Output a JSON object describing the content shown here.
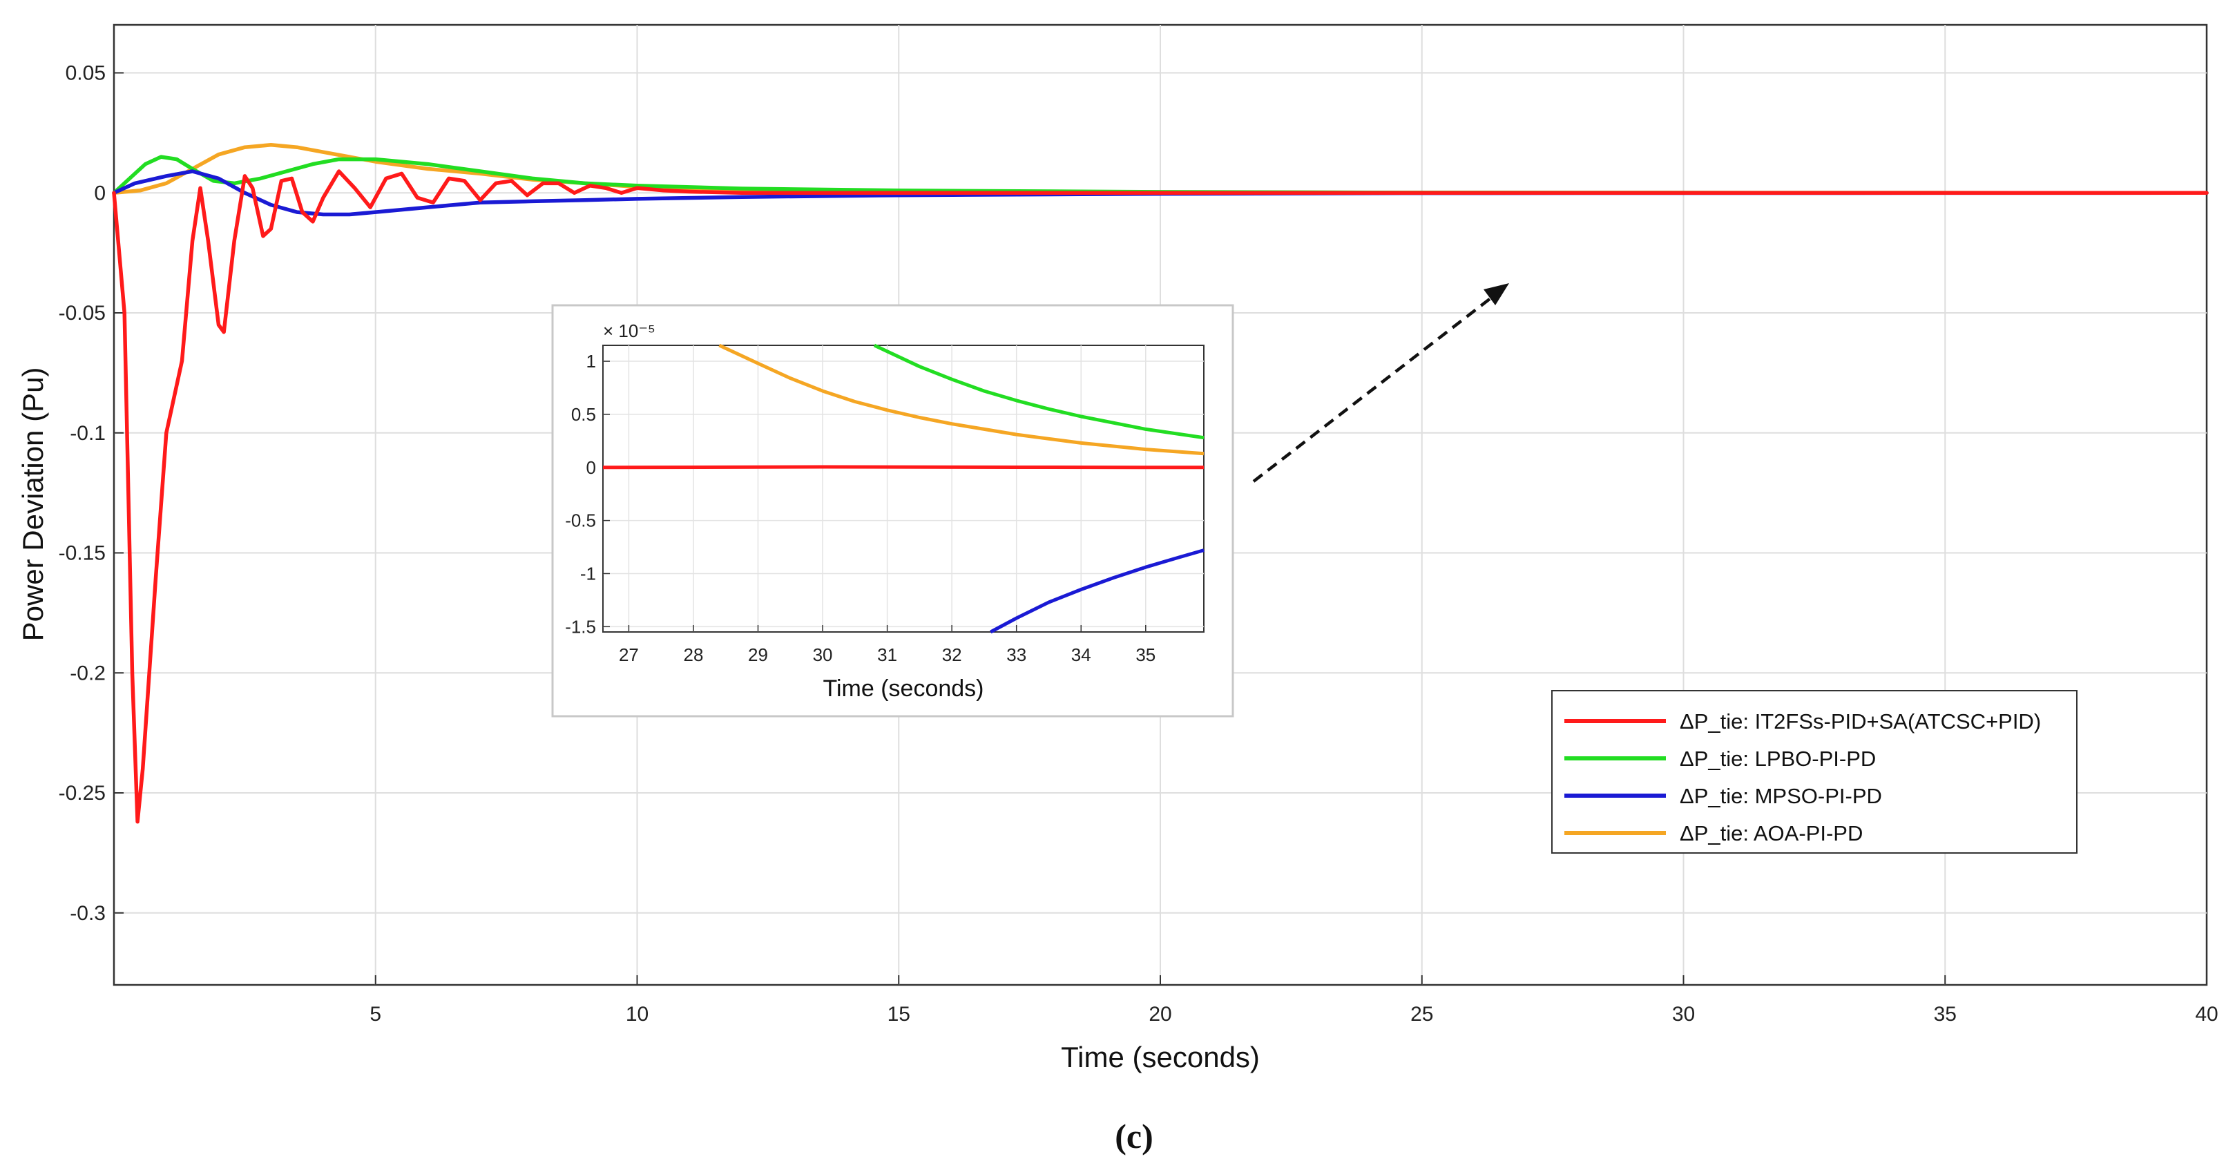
{
  "chart_data": {
    "type": "line",
    "title": "",
    "xlabel": "Time (seconds)",
    "ylabel": "Power Deviation (Pu)",
    "xlim": [
      0,
      40
    ],
    "ylim": [
      -0.33,
      0.07
    ],
    "xticks": [
      5,
      10,
      15,
      20,
      25,
      30,
      35,
      40
    ],
    "xtick_labels": [
      "5",
      "10",
      "15",
      "20",
      "25",
      "30",
      "35",
      "40"
    ],
    "yticks": [
      0.05,
      0,
      -0.05,
      -0.1,
      -0.15,
      -0.2,
      -0.25,
      -0.3
    ],
    "ytick_labels": [
      "0.05",
      "0",
      "-0.05",
      "-0.1",
      "-0.15",
      "-0.2",
      "-0.25",
      "-0.3"
    ],
    "grid": true,
    "legend_position": "lower-right",
    "series": [
      {
        "name": "ΔP_tie: IT2FSs-PID+SA(ATCSC+PID)",
        "color": "#ff1a1a",
        "points": [
          [
            0,
            0
          ],
          [
            0.2,
            -0.05
          ],
          [
            0.35,
            -0.2
          ],
          [
            0.45,
            -0.262
          ],
          [
            0.55,
            -0.24
          ],
          [
            0.8,
            -0.16
          ],
          [
            1.0,
            -0.1
          ],
          [
            1.3,
            -0.07
          ],
          [
            1.5,
            -0.02
          ],
          [
            1.65,
            0.002
          ],
          [
            1.8,
            -0.02
          ],
          [
            2.0,
            -0.055
          ],
          [
            2.1,
            -0.058
          ],
          [
            2.3,
            -0.02
          ],
          [
            2.5,
            0.007
          ],
          [
            2.65,
            0.002
          ],
          [
            2.85,
            -0.018
          ],
          [
            3.0,
            -0.015
          ],
          [
            3.2,
            0.005
          ],
          [
            3.4,
            0.006
          ],
          [
            3.6,
            -0.008
          ],
          [
            3.8,
            -0.012
          ],
          [
            4.0,
            -0.002
          ],
          [
            4.3,
            0.009
          ],
          [
            4.6,
            0.002
          ],
          [
            4.9,
            -0.006
          ],
          [
            5.2,
            0.006
          ],
          [
            5.5,
            0.008
          ],
          [
            5.8,
            -0.002
          ],
          [
            6.1,
            -0.004
          ],
          [
            6.4,
            0.006
          ],
          [
            6.7,
            0.005
          ],
          [
            7.0,
            -0.003
          ],
          [
            7.3,
            0.004
          ],
          [
            7.6,
            0.005
          ],
          [
            7.9,
            -0.001
          ],
          [
            8.2,
            0.004
          ],
          [
            8.5,
            0.004
          ],
          [
            8.8,
            0.0
          ],
          [
            9.1,
            0.003
          ],
          [
            9.4,
            0.002
          ],
          [
            9.7,
            0.0
          ],
          [
            10.0,
            0.002
          ],
          [
            10.5,
            0.001
          ],
          [
            11,
            0.0005
          ],
          [
            12,
            0.0
          ],
          [
            40,
            0.0
          ]
        ]
      },
      {
        "name": "ΔP_tie: LPBO-PI-PD",
        "color": "#22dd22",
        "points": [
          [
            0,
            0
          ],
          [
            0.3,
            0.006
          ],
          [
            0.6,
            0.012
          ],
          [
            0.9,
            0.015
          ],
          [
            1.2,
            0.014
          ],
          [
            1.5,
            0.01
          ],
          [
            1.9,
            0.005
          ],
          [
            2.3,
            0.004
          ],
          [
            2.8,
            0.006
          ],
          [
            3.3,
            0.009
          ],
          [
            3.8,
            0.012
          ],
          [
            4.3,
            0.014
          ],
          [
            5,
            0.014
          ],
          [
            6,
            0.012
          ],
          [
            7,
            0.009
          ],
          [
            8,
            0.006
          ],
          [
            9,
            0.004
          ],
          [
            10,
            0.003
          ],
          [
            12,
            0.0018
          ],
          [
            15,
            0.001
          ],
          [
            20,
            0.0004
          ],
          [
            25,
            0.0001
          ],
          [
            40,
            0.0
          ]
        ]
      },
      {
        "name": "ΔP_tie: MPSO-PI-PD",
        "color": "#1a1ad4",
        "points": [
          [
            0,
            0
          ],
          [
            0.4,
            0.004
          ],
          [
            1.0,
            0.007
          ],
          [
            1.5,
            0.009
          ],
          [
            2.0,
            0.006
          ],
          [
            2.5,
            0.0
          ],
          [
            3.0,
            -0.005
          ],
          [
            3.5,
            -0.008
          ],
          [
            4.0,
            -0.009
          ],
          [
            4.5,
            -0.009
          ],
          [
            5,
            -0.008
          ],
          [
            6,
            -0.006
          ],
          [
            7,
            -0.004
          ],
          [
            8,
            -0.0035
          ],
          [
            9,
            -0.003
          ],
          [
            10,
            -0.0025
          ],
          [
            12,
            -0.0017
          ],
          [
            15,
            -0.001
          ],
          [
            20,
            -0.0004
          ],
          [
            25,
            -0.0001
          ],
          [
            40,
            0.0
          ]
        ]
      },
      {
        "name": "ΔP_tie: AOA-PI-PD",
        "color": "#f5a623",
        "points": [
          [
            0,
            0
          ],
          [
            0.5,
            0.001
          ],
          [
            1.0,
            0.004
          ],
          [
            1.5,
            0.01
          ],
          [
            2.0,
            0.016
          ],
          [
            2.5,
            0.019
          ],
          [
            3.0,
            0.02
          ],
          [
            3.5,
            0.019
          ],
          [
            4.0,
            0.017
          ],
          [
            4.5,
            0.015
          ],
          [
            5,
            0.013
          ],
          [
            6,
            0.01
          ],
          [
            7,
            0.008
          ],
          [
            8,
            0.0055
          ],
          [
            9,
            0.004
          ],
          [
            10,
            0.0025
          ],
          [
            12,
            0.0015
          ],
          [
            15,
            0.0008
          ],
          [
            20,
            0.0003
          ],
          [
            25,
            0.0001
          ],
          [
            40,
            0.0
          ]
        ]
      }
    ],
    "inset": {
      "xlabel": "Time (seconds)",
      "y_exponent_label": "× 10⁻⁵",
      "xlim": [
        26.6,
        35.9
      ],
      "ylim": [
        -1.55,
        1.15
      ],
      "xticks": [
        27,
        28,
        29,
        30,
        31,
        32,
        33,
        34,
        35
      ],
      "xtick_labels": [
        "27",
        "28",
        "29",
        "30",
        "31",
        "32",
        "33",
        "34",
        "35"
      ],
      "yticks": [
        1,
        0.5,
        0,
        -0.5,
        -1,
        -1.5
      ],
      "ytick_labels": [
        "1",
        "0.5",
        "0",
        "-0.5",
        "-1",
        "-1.5"
      ],
      "series": [
        {
          "name": "IT2FSs-PID+SA(ATCSC+PID)",
          "color": "#ff1a1a",
          "points": [
            [
              26.6,
              0.0
            ],
            [
              30,
              0.005
            ],
            [
              33,
              0.002
            ],
            [
              35.9,
              0.0
            ]
          ]
        },
        {
          "name": "LPBO-PI-PD",
          "color": "#22dd22",
          "points": [
            [
              30.8,
              1.15
            ],
            [
              31.5,
              0.95
            ],
            [
              32,
              0.83
            ],
            [
              32.5,
              0.72
            ],
            [
              33,
              0.63
            ],
            [
              33.5,
              0.55
            ],
            [
              34,
              0.48
            ],
            [
              34.5,
              0.42
            ],
            [
              35,
              0.36
            ],
            [
              35.9,
              0.28
            ]
          ]
        },
        {
          "name": "MPSO-PI-PD",
          "color": "#1a1ad4",
          "points": [
            [
              32.6,
              -1.55
            ],
            [
              33,
              -1.42
            ],
            [
              33.5,
              -1.27
            ],
            [
              34,
              -1.15
            ],
            [
              34.5,
              -1.04
            ],
            [
              35,
              -0.94
            ],
            [
              35.5,
              -0.85
            ],
            [
              35.9,
              -0.78
            ]
          ]
        },
        {
          "name": "AOA-PI-PD",
          "color": "#f5a623",
          "points": [
            [
              28.4,
              1.15
            ],
            [
              29,
              0.98
            ],
            [
              29.5,
              0.84
            ],
            [
              30,
              0.72
            ],
            [
              30.5,
              0.62
            ],
            [
              31,
              0.54
            ],
            [
              31.5,
              0.47
            ],
            [
              32,
              0.41
            ],
            [
              32.5,
              0.36
            ],
            [
              33,
              0.31
            ],
            [
              33.5,
              0.27
            ],
            [
              34,
              0.23
            ],
            [
              34.5,
              0.2
            ],
            [
              35,
              0.17
            ],
            [
              35.9,
              0.13
            ]
          ]
        }
      ]
    },
    "caption": "(c)"
  }
}
